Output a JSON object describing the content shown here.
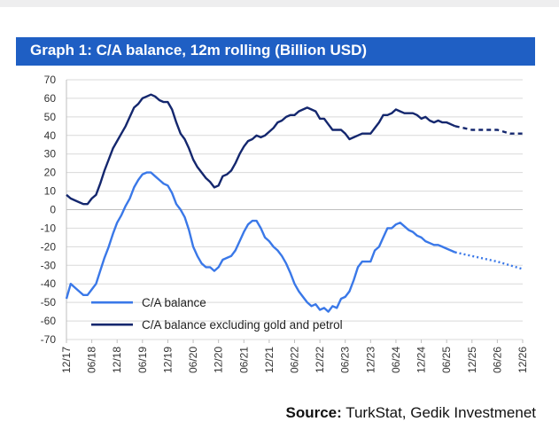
{
  "title": "Graph 1: C/A balance, 12m rolling (Billion USD)",
  "source": {
    "label": "Source:",
    "text": "TurkStat, Gedik Investmenet"
  },
  "colors": {
    "title_bg": "#1f5fc4",
    "ca_balance": "#3a78e8",
    "ca_ex_gold_petrol": "#14276e"
  },
  "chart_data": {
    "type": "line",
    "ylim": [
      -70,
      70
    ],
    "yticks": [
      70,
      60,
      50,
      40,
      30,
      20,
      10,
      0,
      -10,
      -20,
      -30,
      -40,
      -50,
      -60,
      -70
    ],
    "xlim": [
      "2017-12",
      "2026-12"
    ],
    "xtick_labels": [
      "12/17",
      "06/18",
      "12/18",
      "06/19",
      "12/19",
      "06/20",
      "12/20",
      "06/21",
      "12/21",
      "06/22",
      "12/22",
      "06/23",
      "12/23",
      "06/24",
      "12/24",
      "06/25",
      "12/25",
      "06/26",
      "12/26"
    ],
    "grid": "horizontal",
    "legend_position": "bottom-left",
    "series": [
      {
        "name": "C/A balance",
        "color": "#3a78e8",
        "actual": [
          [
            "2017-12",
            -48
          ],
          [
            "2018-01",
            -40
          ],
          [
            "2018-02",
            -42
          ],
          [
            "2018-03",
            -44
          ],
          [
            "2018-04",
            -46
          ],
          [
            "2018-05",
            -46
          ],
          [
            "2018-06",
            -43
          ],
          [
            "2018-07",
            -40
          ],
          [
            "2018-08",
            -33
          ],
          [
            "2018-09",
            -26
          ],
          [
            "2018-10",
            -20
          ],
          [
            "2018-11",
            -13
          ],
          [
            "2018-12",
            -7
          ],
          [
            "2019-01",
            -3
          ],
          [
            "2019-02",
            2
          ],
          [
            "2019-03",
            6
          ],
          [
            "2019-04",
            12
          ],
          [
            "2019-05",
            16
          ],
          [
            "2019-06",
            19
          ],
          [
            "2019-07",
            20
          ],
          [
            "2019-08",
            20
          ],
          [
            "2019-09",
            18
          ],
          [
            "2019-10",
            16
          ],
          [
            "2019-11",
            14
          ],
          [
            "2019-12",
            13
          ],
          [
            "2020-01",
            9
          ],
          [
            "2020-02",
            3
          ],
          [
            "2020-03",
            0
          ],
          [
            "2020-04",
            -4
          ],
          [
            "2020-05",
            -11
          ],
          [
            "2020-06",
            -20
          ],
          [
            "2020-07",
            -25
          ],
          [
            "2020-08",
            -29
          ],
          [
            "2020-09",
            -31
          ],
          [
            "2020-10",
            -31
          ],
          [
            "2020-11",
            -33
          ],
          [
            "2020-12",
            -31
          ],
          [
            "2021-01",
            -27
          ],
          [
            "2021-02",
            -26
          ],
          [
            "2021-03",
            -25
          ],
          [
            "2021-04",
            -22
          ],
          [
            "2021-05",
            -17
          ],
          [
            "2021-06",
            -12
          ],
          [
            "2021-07",
            -8
          ],
          [
            "2021-08",
            -6
          ],
          [
            "2021-09",
            -6
          ],
          [
            "2021-10",
            -10
          ],
          [
            "2021-11",
            -15
          ],
          [
            "2021-12",
            -17
          ],
          [
            "2022-01",
            -20
          ],
          [
            "2022-02",
            -22
          ],
          [
            "2022-03",
            -25
          ],
          [
            "2022-04",
            -29
          ],
          [
            "2022-05",
            -34
          ],
          [
            "2022-06",
            -40
          ],
          [
            "2022-07",
            -44
          ],
          [
            "2022-08",
            -47
          ],
          [
            "2022-09",
            -50
          ],
          [
            "2022-10",
            -52
          ],
          [
            "2022-11",
            -51
          ],
          [
            "2022-12",
            -54
          ],
          [
            "2023-01",
            -53
          ],
          [
            "2023-02",
            -55
          ],
          [
            "2023-03",
            -52
          ],
          [
            "2023-04",
            -53
          ],
          [
            "2023-05",
            -48
          ],
          [
            "2023-06",
            -47
          ],
          [
            "2023-07",
            -44
          ],
          [
            "2023-08",
            -38
          ],
          [
            "2023-09",
            -31
          ],
          [
            "2023-10",
            -28
          ],
          [
            "2023-11",
            -28
          ],
          [
            "2023-12",
            -28
          ],
          [
            "2024-01",
            -22
          ],
          [
            "2024-02",
            -20
          ],
          [
            "2024-03",
            -15
          ],
          [
            "2024-04",
            -10
          ],
          [
            "2024-05",
            -10
          ],
          [
            "2024-06",
            -8
          ],
          [
            "2024-07",
            -7
          ],
          [
            "2024-08",
            -9
          ],
          [
            "2024-09",
            -11
          ],
          [
            "2024-10",
            -12
          ],
          [
            "2024-11",
            -14
          ],
          [
            "2024-12",
            -15
          ],
          [
            "2025-01",
            -17
          ],
          [
            "2025-02",
            -18
          ],
          [
            "2025-03",
            -19
          ],
          [
            "2025-04",
            -19
          ],
          [
            "2025-05",
            -20
          ],
          [
            "2025-06",
            -21
          ],
          [
            "2025-07",
            -22
          ],
          [
            "2025-08",
            -23
          ]
        ],
        "forecast": [
          [
            "2025-08",
            -23
          ],
          [
            "2025-12",
            -25
          ],
          [
            "2026-06",
            -28
          ],
          [
            "2026-12",
            -32
          ]
        ]
      },
      {
        "name": "C/A balance excluding gold and petrol",
        "color": "#14276e",
        "actual": [
          [
            "2017-12",
            8
          ],
          [
            "2018-01",
            6
          ],
          [
            "2018-02",
            5
          ],
          [
            "2018-03",
            4
          ],
          [
            "2018-04",
            3
          ],
          [
            "2018-05",
            3
          ],
          [
            "2018-06",
            6
          ],
          [
            "2018-07",
            8
          ],
          [
            "2018-08",
            14
          ],
          [
            "2018-09",
            21
          ],
          [
            "2018-10",
            27
          ],
          [
            "2018-11",
            33
          ],
          [
            "2018-12",
            37
          ],
          [
            "2019-01",
            41
          ],
          [
            "2019-02",
            45
          ],
          [
            "2019-03",
            50
          ],
          [
            "2019-04",
            55
          ],
          [
            "2019-05",
            57
          ],
          [
            "2019-06",
            60
          ],
          [
            "2019-07",
            61
          ],
          [
            "2019-08",
            62
          ],
          [
            "2019-09",
            61
          ],
          [
            "2019-10",
            59
          ],
          [
            "2019-11",
            58
          ],
          [
            "2019-12",
            58
          ],
          [
            "2020-01",
            54
          ],
          [
            "2020-02",
            47
          ],
          [
            "2020-03",
            41
          ],
          [
            "2020-04",
            38
          ],
          [
            "2020-05",
            33
          ],
          [
            "2020-06",
            27
          ],
          [
            "2020-07",
            23
          ],
          [
            "2020-08",
            20
          ],
          [
            "2020-09",
            17
          ],
          [
            "2020-10",
            15
          ],
          [
            "2020-11",
            12
          ],
          [
            "2020-12",
            13
          ],
          [
            "2021-01",
            18
          ],
          [
            "2021-02",
            19
          ],
          [
            "2021-03",
            21
          ],
          [
            "2021-04",
            25
          ],
          [
            "2021-05",
            30
          ],
          [
            "2021-06",
            34
          ],
          [
            "2021-07",
            37
          ],
          [
            "2021-08",
            38
          ],
          [
            "2021-09",
            40
          ],
          [
            "2021-10",
            39
          ],
          [
            "2021-11",
            40
          ],
          [
            "2021-12",
            42
          ],
          [
            "2022-01",
            44
          ],
          [
            "2022-02",
            47
          ],
          [
            "2022-03",
            48
          ],
          [
            "2022-04",
            50
          ],
          [
            "2022-05",
            51
          ],
          [
            "2022-06",
            51
          ],
          [
            "2022-07",
            53
          ],
          [
            "2022-08",
            54
          ],
          [
            "2022-09",
            55
          ],
          [
            "2022-10",
            54
          ],
          [
            "2022-11",
            53
          ],
          [
            "2022-12",
            49
          ],
          [
            "2023-01",
            49
          ],
          [
            "2023-02",
            46
          ],
          [
            "2023-03",
            43
          ],
          [
            "2023-04",
            43
          ],
          [
            "2023-05",
            43
          ],
          [
            "2023-06",
            41
          ],
          [
            "2023-07",
            38
          ],
          [
            "2023-08",
            39
          ],
          [
            "2023-09",
            40
          ],
          [
            "2023-10",
            41
          ],
          [
            "2023-11",
            41
          ],
          [
            "2023-12",
            41
          ],
          [
            "2024-01",
            44
          ],
          [
            "2024-02",
            47
          ],
          [
            "2024-03",
            51
          ],
          [
            "2024-04",
            51
          ],
          [
            "2024-05",
            52
          ],
          [
            "2024-06",
            54
          ],
          [
            "2024-07",
            53
          ],
          [
            "2024-08",
            52
          ],
          [
            "2024-09",
            52
          ],
          [
            "2024-10",
            52
          ],
          [
            "2024-11",
            51
          ],
          [
            "2024-12",
            49
          ],
          [
            "2025-01",
            50
          ],
          [
            "2025-02",
            48
          ],
          [
            "2025-03",
            47
          ],
          [
            "2025-04",
            48
          ],
          [
            "2025-05",
            47
          ],
          [
            "2025-06",
            47
          ],
          [
            "2025-07",
            46
          ],
          [
            "2025-08",
            45
          ]
        ],
        "forecast": [
          [
            "2025-08",
            45
          ],
          [
            "2025-12",
            43
          ],
          [
            "2026-06",
            43
          ],
          [
            "2026-09",
            41
          ],
          [
            "2026-12",
            41
          ]
        ]
      }
    ]
  }
}
